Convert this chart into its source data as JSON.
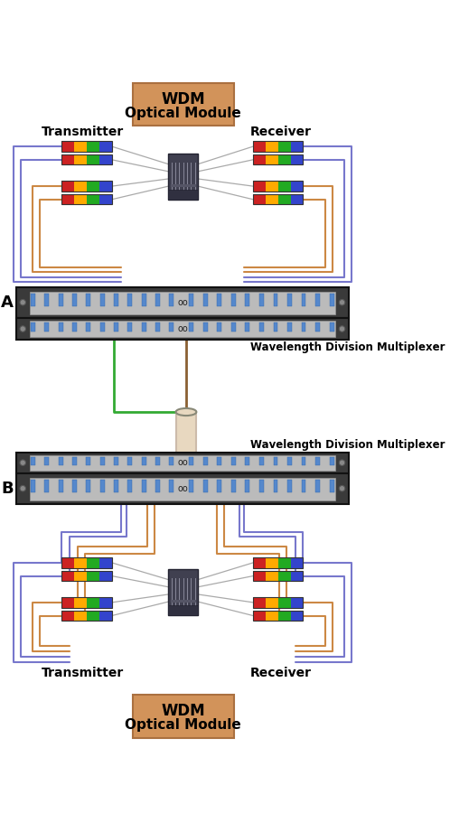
{
  "bg_color": "#ffffff",
  "wdm_box_color": "#D2935A",
  "wdm_box_top_text": "WDM",
  "wdm_box_bottom_text": "Optical Module",
  "transmitter_label": "Transmitter",
  "receiver_label": "Receiver",
  "line_color_blue": "#7777CC",
  "line_color_orange": "#CC8844",
  "line_color_green": "#33AA33",
  "line_color_brown": "#8B6033",
  "multiplexer_label": "Wavelength Division Multiplexer",
  "label_A": "A",
  "label_B": "B",
  "gray_line": "#AAAAAA",
  "rack_dark": "#3A3A3A",
  "rack_panel": "#BBBBBB",
  "rack_port": "#5588CC",
  "device_color": "#444455",
  "cyl_fill": "#E8D8C0",
  "cyl_edge": "#CCBBAA"
}
